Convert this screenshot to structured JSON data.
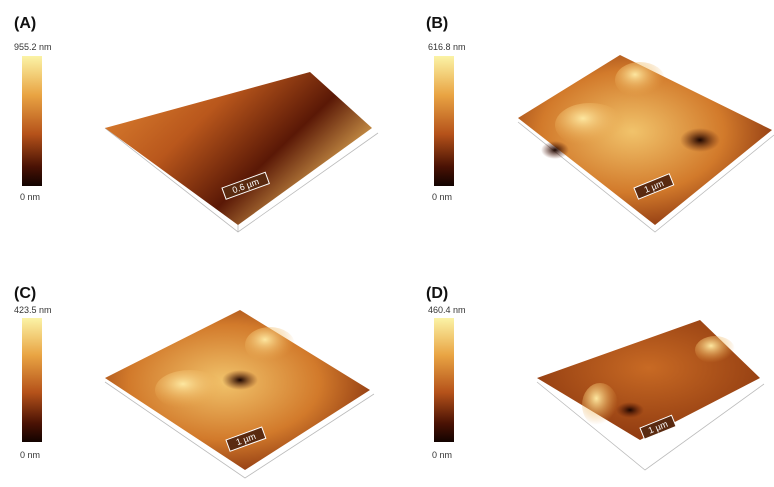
{
  "panels": [
    {
      "label": "(A)",
      "max": "955.2 nm",
      "min": "0 nm",
      "scale": "0.6 µm"
    },
    {
      "label": "(B)",
      "max": "616.8 nm",
      "min": "0 nm",
      "scale": "1 µm"
    },
    {
      "label": "(C)",
      "max": "423.5 nm",
      "min": "0 nm",
      "scale": "1 µm"
    },
    {
      "label": "(D)",
      "max": "460.4 nm",
      "min": "0 nm",
      "scale": "1 µm"
    }
  ]
}
